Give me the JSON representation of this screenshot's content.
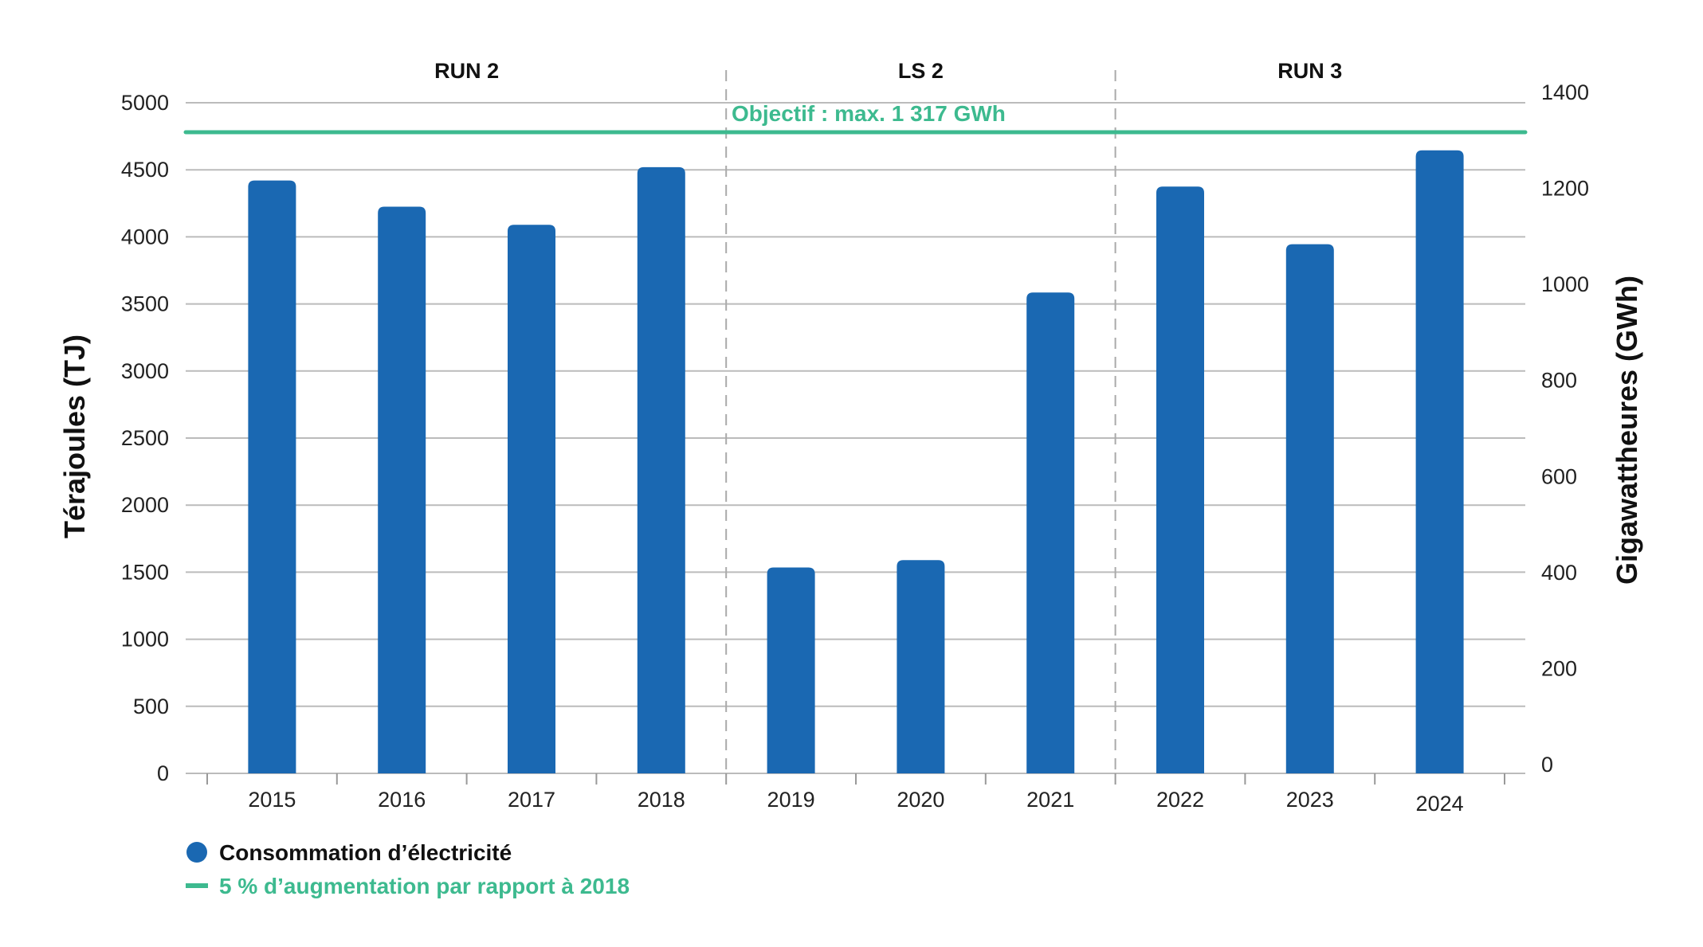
{
  "chart_data": {
    "type": "bar",
    "categories": [
      "2015",
      "2016",
      "2017",
      "2018",
      "2019",
      "2020",
      "2021",
      "2022",
      "2023",
      "2024"
    ],
    "series": [
      {
        "name": "Consommation d’électricité",
        "unit": "TJ",
        "values": [
          4420,
          4225,
          4090,
          4520,
          1535,
          1590,
          3585,
          4375,
          3945,
          4645
        ]
      }
    ],
    "reference_line": {
      "name": "5 % d’augmentation par rapport à 2018",
      "label": "Objectif : max. 1 317 GWh",
      "value_gwh": 1317,
      "value_tj": 4741
    },
    "periods": [
      {
        "label": "RUN 2",
        "from": "2015",
        "to": "2018"
      },
      {
        "label": "LS 2",
        "from": "2019",
        "to": "2021"
      },
      {
        "label": "RUN 3",
        "from": "2022",
        "to": "2024"
      }
    ],
    "ylabel": "Térajoules (TJ)",
    "ylim": [
      0,
      5000
    ],
    "yticks": [
      "0",
      "500",
      "1000",
      "1500",
      "2000",
      "2500",
      "3000",
      "3500",
      "4000",
      "4500",
      "5000"
    ],
    "y2label": "Gigawattheures (GWh)",
    "y2lim": [
      0,
      1400
    ],
    "y2ticks": [
      "0",
      "200",
      "400",
      "600",
      "800",
      "1000",
      "1200",
      "1400"
    ],
    "grid": true,
    "legend_position": "bottom-left",
    "colors": {
      "bar": "#1a68b2",
      "target": "#3dba8f",
      "grid": "#bbbbbb"
    }
  }
}
